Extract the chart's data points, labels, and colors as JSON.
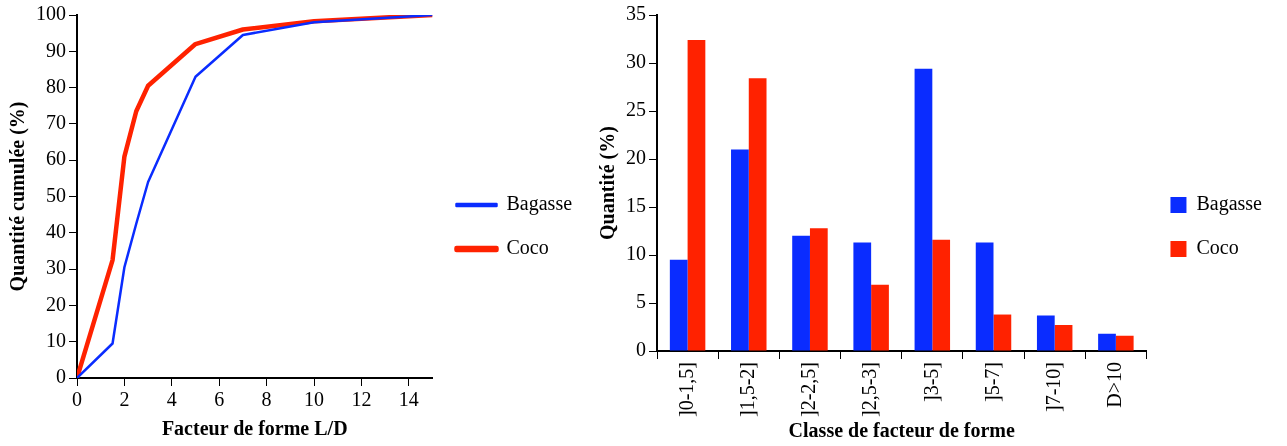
{
  "chart_data": [
    {
      "type": "line",
      "xlabel": "Facteur de forme L/D",
      "ylabel": "Quantité cumulée (%)",
      "xlim": [
        0,
        15
      ],
      "xticks": [
        0,
        2,
        4,
        6,
        8,
        10,
        12,
        14
      ],
      "ylim": [
        0,
        100
      ],
      "yticks": [
        0,
        10,
        20,
        30,
        40,
        50,
        60,
        70,
        80,
        90,
        100
      ],
      "grid": false,
      "legend": "right",
      "marker": "none",
      "x": [
        0,
        1.5,
        2,
        2.5,
        3,
        5,
        7,
        10,
        15
      ],
      "series": [
        {
          "name": "Bagasse",
          "color": "#0a2cff",
          "values": [
            0,
            9.5,
            30.5,
            42.5,
            54,
            83,
            94.5,
            98,
            100
          ]
        },
        {
          "name": "Coco",
          "color": "#ff2200",
          "values": [
            0,
            32.5,
            61,
            73.5,
            80.5,
            92,
            96,
            98.3,
            100
          ]
        }
      ]
    },
    {
      "type": "bar",
      "xlabel": "Classe de facteur de forme",
      "ylabel": "Quantité (%)",
      "ylim": [
        0,
        35
      ],
      "yticks": [
        0,
        5,
        10,
        15,
        20,
        25,
        30,
        35
      ],
      "grid": false,
      "legend": "right",
      "categories": [
        "]0-1,5]",
        "]1,5-2]",
        "]2-2,5]",
        "]2,5-3]",
        "]3-5]",
        "]5-7]",
        "]7-10]",
        "D>10"
      ],
      "series": [
        {
          "name": "Bagasse",
          "color": "#0a2cff",
          "values": [
            9.5,
            21,
            12,
            11.3,
            29.4,
            11.3,
            3.7,
            1.8
          ]
        },
        {
          "name": "Coco",
          "color": "#ff2200",
          "values": [
            32.4,
            28.4,
            12.8,
            6.9,
            11.6,
            3.8,
            2.7,
            1.6
          ]
        }
      ]
    }
  ]
}
